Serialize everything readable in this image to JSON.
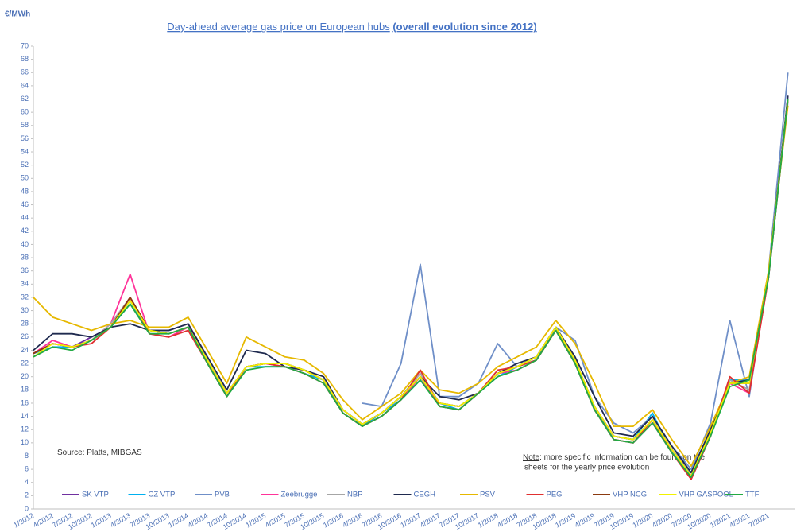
{
  "chart_data": {
    "type": "line",
    "y_unit": "€/MWh",
    "title": "Day-ahead average gas price on European hubs",
    "title_emphasis": "(overall evolution since 2012)",
    "source_label": "Source",
    "source_text": ": Platts, MIBGAS",
    "note_label": "Note",
    "note_text": ": more specific information can be found on the",
    "note_text_2": "sheets for the yearly price evolution",
    "categories": [
      "1/2012",
      "4/2012",
      "7/2012",
      "10/2012",
      "1/2013",
      "4/2013",
      "7/2013",
      "10/2013",
      "1/2014",
      "4/2014",
      "7/2014",
      "10/2014",
      "1/2015",
      "4/2015",
      "7/2015",
      "10/2015",
      "1/2016",
      "4/2016",
      "7/2016",
      "10/2016",
      "1/2017",
      "4/2017",
      "7/2017",
      "10/2017",
      "1/2018",
      "4/2018",
      "7/2018",
      "10/2018",
      "1/2019",
      "4/2019",
      "7/2019",
      "10/2019",
      "1/2020",
      "4/2020",
      "7/2020",
      "10/2020",
      "1/2021",
      "4/2021",
      "7/2021",
      null
    ],
    "ylim": [
      0,
      70
    ],
    "yticks": [
      0,
      2,
      4,
      6,
      8,
      10,
      12,
      14,
      16,
      18,
      20,
      22,
      24,
      26,
      28,
      30,
      32,
      34,
      36,
      38,
      40,
      42,
      44,
      46,
      48,
      50,
      52,
      54,
      56,
      58,
      60,
      62,
      64,
      66,
      68,
      70
    ],
    "grid": false,
    "legend": "bottom",
    "series": [
      {
        "name": "SK VTP",
        "color": "#7030a0",
        "values": [
          23.5,
          25,
          24.5,
          26,
          27.5,
          31.5,
          27,
          27,
          28,
          22.5,
          17.5,
          21.5,
          22,
          22,
          21,
          19.5,
          15,
          12.8,
          14.5,
          17,
          20,
          16,
          15.5,
          17.5,
          20.5,
          21.5,
          23,
          27.5,
          22.5,
          15.5,
          11,
          10.5,
          13.5,
          9,
          5,
          11.5,
          19,
          19.5,
          35.5,
          62.5
        ]
      },
      {
        "name": "CZ VTP",
        "color": "#00b0f0",
        "values": [
          23.5,
          24.5,
          24.5,
          25.5,
          27.5,
          31,
          27,
          26.5,
          27.5,
          22.5,
          17.5,
          21.5,
          21.5,
          21.5,
          20.5,
          19.5,
          14.5,
          12.5,
          14.5,
          16.5,
          19.5,
          16,
          15,
          17.5,
          20,
          21.5,
          22.5,
          27.5,
          22,
          15,
          11,
          10.5,
          14.5,
          8.5,
          5.5,
          12,
          19.5,
          19.5,
          35,
          62
        ]
      },
      {
        "name": "PVB",
        "color": "#6f8fc8",
        "values": [
          null,
          null,
          null,
          null,
          null,
          null,
          null,
          null,
          null,
          null,
          null,
          null,
          null,
          null,
          null,
          null,
          null,
          16,
          15.5,
          22,
          37,
          17,
          17,
          19,
          25,
          21.5,
          23,
          27.5,
          25.5,
          17,
          13,
          11.5,
          14,
          9.5,
          6,
          13,
          28.5,
          17,
          36,
          66
        ]
      },
      {
        "name": "Zeebrugge",
        "color": "#ff3399",
        "values": [
          23.5,
          25.5,
          24.5,
          25.5,
          28,
          35.5,
          26.5,
          26,
          27.5,
          22,
          17,
          21.5,
          22,
          21.5,
          20.5,
          19,
          14.5,
          12.5,
          14,
          16.5,
          20,
          15.5,
          15,
          17.5,
          20.5,
          21,
          22.5,
          27,
          22,
          15,
          10.5,
          10,
          13,
          8.5,
          4.5,
          11,
          19,
          17.5,
          35,
          62
        ]
      },
      {
        "name": "NBP",
        "color": "#a6a6a6",
        "values": [
          23.5,
          25,
          24.5,
          25.5,
          28,
          32,
          27,
          26.5,
          27.5,
          22.5,
          17,
          21.5,
          22,
          22,
          21,
          19.5,
          15,
          12.8,
          14.5,
          17,
          20.5,
          16,
          15.5,
          17.5,
          20.5,
          21.5,
          23,
          27.5,
          22.5,
          15.5,
          11,
          10.5,
          13.5,
          9,
          5.5,
          11.5,
          19.5,
          18,
          35.5,
          61.5
        ]
      },
      {
        "name": "CEGH",
        "color": "#1f2a4f",
        "values": [
          24,
          26.5,
          26.5,
          26,
          27.5,
          28,
          27,
          27,
          28,
          23,
          18,
          24,
          23.5,
          21.5,
          21,
          20,
          15,
          12.8,
          14.5,
          17,
          20,
          17,
          16.5,
          17.5,
          20.5,
          22,
          23,
          27.5,
          23,
          17,
          11.5,
          11,
          14,
          9.5,
          5.5,
          12,
          19,
          19.5,
          35.5,
          62.5
        ]
      },
      {
        "name": "PSV",
        "color": "#e6b800",
        "values": [
          32,
          29,
          28,
          27,
          28,
          28.5,
          27.5,
          27.5,
          29,
          24,
          19,
          26,
          24.5,
          23,
          22.5,
          20.5,
          16.5,
          13.5,
          15.5,
          17.5,
          21,
          18,
          17.5,
          19,
          21.5,
          23,
          24.5,
          28.5,
          25,
          19,
          12.5,
          12.5,
          15,
          10.5,
          6.5,
          12.5,
          19,
          20,
          36,
          61
        ]
      },
      {
        "name": "PEG",
        "color": "#e03030",
        "values": [
          23.5,
          25,
          24.5,
          25,
          27.5,
          32,
          26.5,
          26,
          27,
          22,
          17,
          21.5,
          22,
          21.5,
          20.5,
          19,
          14.5,
          12.5,
          14,
          16.5,
          21,
          15.5,
          15,
          17.5,
          21,
          21.5,
          22.5,
          27,
          22,
          15,
          10.5,
          10,
          13.5,
          8.5,
          4.5,
          11,
          20,
          17.5,
          35,
          62
        ]
      },
      {
        "name": "VHP NCG",
        "color": "#8b3a0f",
        "values": [
          23.5,
          25,
          24.5,
          25.5,
          27.5,
          32,
          27,
          26.5,
          27.5,
          22.5,
          17.5,
          21.5,
          22,
          22,
          21,
          19.5,
          15,
          12.8,
          14.5,
          17,
          20,
          16,
          15.5,
          17.5,
          20.5,
          21.5,
          23,
          27.5,
          22.5,
          15.5,
          11,
          10.5,
          13.5,
          9,
          5,
          11.5,
          19,
          19,
          35.5,
          62
        ]
      },
      {
        "name": "VHP GASPOOL",
        "color": "#f2f200",
        "values": [
          23,
          25,
          24.5,
          25.5,
          27.5,
          31.5,
          27,
          26.5,
          27.5,
          22.5,
          17.5,
          21.5,
          22,
          22,
          21,
          19.5,
          15,
          12.8,
          14.5,
          17,
          20,
          16,
          15.5,
          17.5,
          20.5,
          21.5,
          23,
          27.5,
          22.5,
          15.5,
          11,
          10.5,
          13.5,
          9,
          5,
          11.5,
          19,
          19,
          35.5,
          62
        ]
      },
      {
        "name": "TTF",
        "color": "#22aa44",
        "values": [
          23,
          24.5,
          24,
          25.5,
          27.5,
          31,
          26.5,
          26.5,
          27.5,
          22,
          17,
          21,
          21.5,
          21.5,
          20.5,
          19,
          14.5,
          12.5,
          14,
          16.5,
          19.5,
          15.5,
          15,
          17.5,
          20,
          21,
          22.5,
          27,
          22,
          15,
          10.5,
          10,
          13,
          8.5,
          4.8,
          11,
          18.5,
          19.5,
          35,
          62
        ]
      }
    ]
  }
}
